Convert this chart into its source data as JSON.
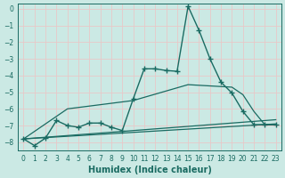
{
  "xlabel": "Humidex (Indice chaleur)",
  "xlim": [
    -0.5,
    23.5
  ],
  "ylim": [
    -8.5,
    0.3
  ],
  "bg_color": "#cbe9e4",
  "grid_color": "#e8c8c8",
  "line_color": "#1a6b62",
  "series": [
    {
      "x": [
        0,
        1,
        2,
        3,
        4,
        5,
        6,
        7,
        8,
        9,
        10,
        11,
        12,
        13,
        14,
        15,
        16,
        17,
        18,
        19,
        20,
        21,
        22,
        23
      ],
      "y": [
        -7.8,
        -8.2,
        -7.75,
        -6.7,
        -7.0,
        -7.1,
        -6.85,
        -6.85,
        -7.1,
        -7.3,
        -5.4,
        -3.6,
        -3.6,
        -3.7,
        -3.75,
        0.15,
        -1.3,
        -3.0,
        -4.4,
        -5.05,
        -6.15,
        -6.95,
        -6.95,
        -6.95
      ],
      "marker": "+",
      "markersize": 4,
      "linewidth": 1.0
    },
    {
      "x": [
        0,
        4,
        10,
        15,
        19,
        20,
        21,
        22,
        23
      ],
      "y": [
        -7.8,
        -6.0,
        -5.5,
        -4.55,
        -4.7,
        -5.15,
        -6.15,
        -6.95,
        -6.95
      ],
      "marker": null,
      "markersize": 0,
      "linewidth": 0.9
    },
    {
      "x": [
        0,
        23
      ],
      "y": [
        -7.8,
        -6.65
      ],
      "marker": null,
      "markersize": 0,
      "linewidth": 0.9
    },
    {
      "x": [
        0,
        23
      ],
      "y": [
        -7.8,
        -6.9
      ],
      "marker": null,
      "markersize": 0,
      "linewidth": 0.9
    }
  ],
  "xticks": [
    0,
    1,
    2,
    3,
    4,
    5,
    6,
    7,
    8,
    9,
    10,
    11,
    12,
    13,
    14,
    15,
    16,
    17,
    18,
    19,
    20,
    21,
    22,
    23
  ],
  "yticks": [
    0,
    -1,
    -2,
    -3,
    -4,
    -5,
    -6,
    -7,
    -8
  ],
  "tick_fontsize": 5.5,
  "label_fontsize": 7.0
}
